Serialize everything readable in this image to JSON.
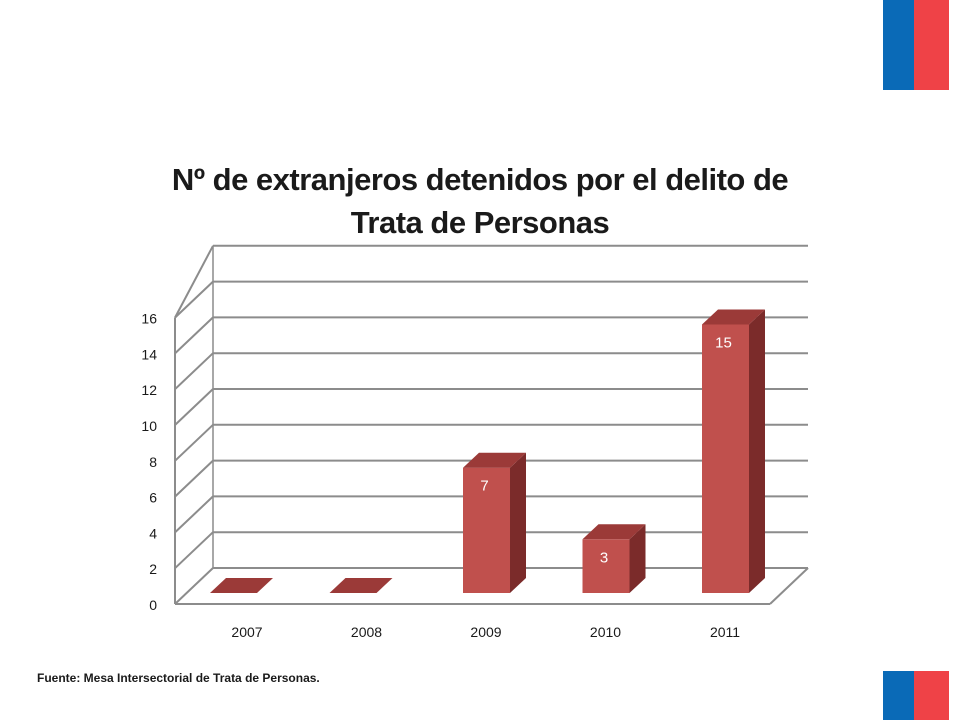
{
  "chart_data": {
    "type": "bar",
    "title_lines": [
      "Nº de extranjeros detenidos por el delito de",
      "Trata de Personas"
    ],
    "categories": [
      "2007",
      "2008",
      "2009",
      "2010",
      "2011"
    ],
    "values": [
      0,
      0,
      7,
      3,
      15
    ],
    "data_labels": [
      "",
      "",
      "7",
      "3",
      "15"
    ],
    "ylim": [
      0,
      16
    ],
    "yticks": [
      0,
      2,
      4,
      6,
      8,
      10,
      12,
      14,
      16
    ],
    "grid": true,
    "style": "3d-column",
    "colors": {
      "bar_front": "#c0504d",
      "bar_side": "#7b2b2a",
      "bar_top": "#9b3a38",
      "grid": "#8c8c8c",
      "label": "#ffffff"
    }
  },
  "footer": {
    "source": "Fuente: Mesa Intersectorial de Trata de Personas."
  },
  "flag_colors": {
    "blue": "#0a6ab7",
    "red": "#ef4247"
  }
}
